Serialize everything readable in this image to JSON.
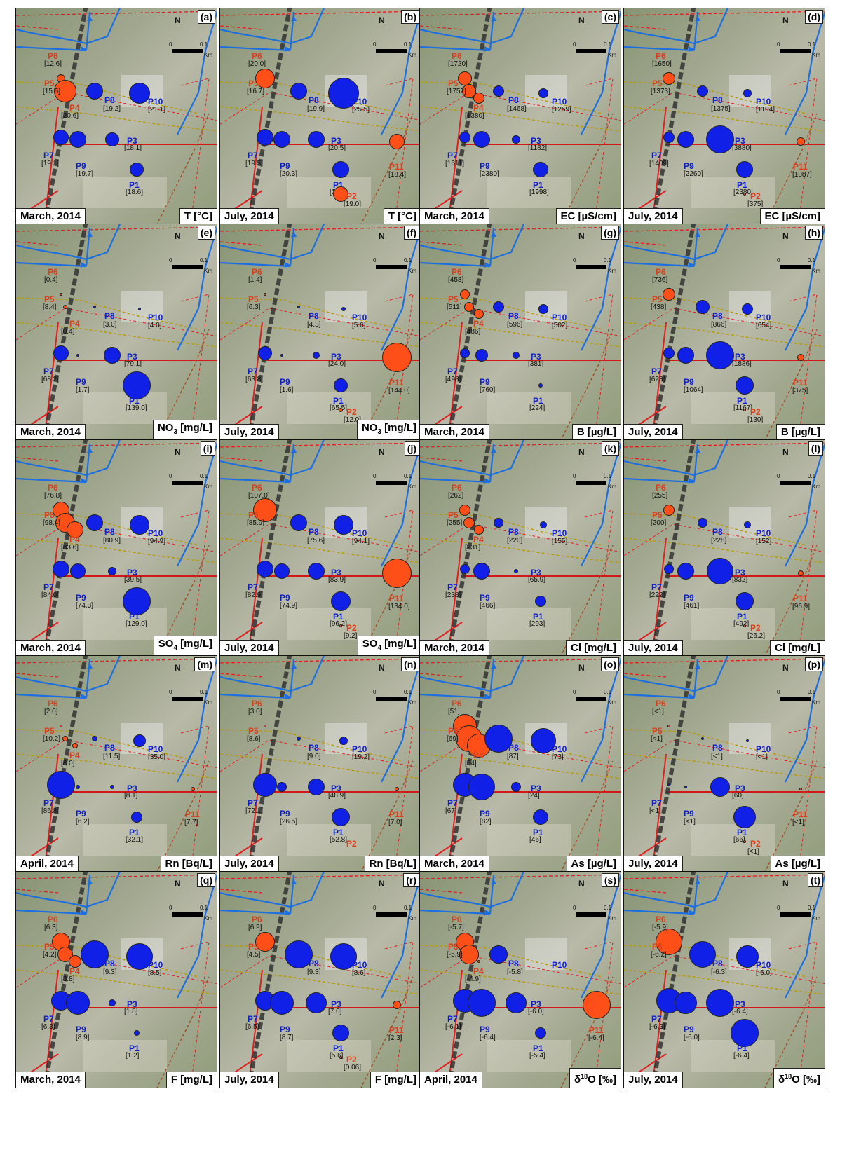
{
  "colors": {
    "low_group": "#1020e6",
    "high_group": "#ff4f18"
  },
  "scale": {
    "zero": "0",
    "tick": "0.1",
    "unit": "Km",
    "north": "N"
  },
  "panels": [
    {
      "tag": "(a)",
      "date": "March, 2014",
      "param": "T [°C]",
      "wells": {
        "P6": {
          "v": "[12.6]",
          "r": 6
        },
        "P5": {
          "v": "[15.5]",
          "r": 16
        },
        "P4": {
          "v": "[20.6]",
          "r": 0
        },
        "P8": {
          "v": "[19.2]",
          "r": 12
        },
        "P10": {
          "v": "[21.1]",
          "r": 15
        },
        "P7": {
          "v": "[19.1]",
          "r": 11
        },
        "P9": {
          "v": "[19.7]",
          "r": 12
        },
        "P3": {
          "v": "[18.1]",
          "r": 10
        },
        "P1": {
          "v": "[18.6]",
          "r": 10
        }
      }
    },
    {
      "tag": "(b)",
      "date": "July, 2014",
      "param": "T [°C]",
      "wells": {
        "P6": {
          "v": "[20.0]",
          "r": 14
        },
        "P5": {
          "v": "[16.7]",
          "r": 0
        },
        "P8": {
          "v": "[19.9]",
          "r": 12
        },
        "P10": {
          "v": "[25.5]",
          "r": 22
        },
        "P7": {
          "v": "[19.5]",
          "r": 12
        },
        "P9": {
          "v": "[20.3]",
          "r": 12
        },
        "P3": {
          "v": "[20.5]",
          "r": 12
        },
        "P11": {
          "v": "[18.4]",
          "r": 11
        },
        "P1": {
          "v": "[19.7]",
          "r": 12
        },
        "P2": {
          "v": "[19.0]",
          "r": 11
        }
      }
    },
    {
      "tag": "(c)",
      "date": "March, 2014",
      "param": "EC [µS/cm]",
      "wells": {
        "P6": {
          "v": "[1720]",
          "r": 10
        },
        "P5": {
          "v": "[1752]",
          "r": 10
        },
        "P4": {
          "v": "[1380]",
          "r": 8
        },
        "P8": {
          "v": "[1468]",
          "r": 8
        },
        "P10": {
          "v": "[1259]",
          "r": 7
        },
        "P7": {
          "v": "[1611]",
          "r": 8
        },
        "P9": {
          "v": "[2380]",
          "r": 12
        },
        "P3": {
          "v": "[1182]",
          "r": 6
        },
        "P1": {
          "v": "[1998]",
          "r": 11
        }
      }
    },
    {
      "tag": "(d)",
      "date": "July, 2014",
      "param": "EC [µS/cm]",
      "wells": {
        "P6": {
          "v": "[1650]",
          "r": 9
        },
        "P5": {
          "v": "[1373]",
          "r": 0
        },
        "P8": {
          "v": "[1375]",
          "r": 8
        },
        "P10": {
          "v": "[1104]",
          "r": 6
        },
        "P7": {
          "v": "[1409]",
          "r": 8
        },
        "P9": {
          "v": "[2260]",
          "r": 12
        },
        "P3": {
          "v": "[3880]",
          "r": 20
        },
        "P11": {
          "v": "[1087]",
          "r": 6
        },
        "P1": {
          "v": "[2380]",
          "r": 12
        },
        "P2": {
          "v": "[375]",
          "r": 2
        }
      }
    },
    {
      "tag": "(e)",
      "date": "March, 2014",
      "param": "NO3 [mg/L]",
      "wells": {
        "P6": {
          "v": "[0.4]",
          "r": 2
        },
        "P5": {
          "v": "[8.4]",
          "r": 3
        },
        "P4": {
          "v": "[0.4]",
          "r": 0
        },
        "P8": {
          "v": "[3.0]",
          "r": 2
        },
        "P10": {
          "v": "[4.0]",
          "r": 2
        },
        "P7": {
          "v": "[68.2]",
          "r": 11
        },
        "P9": {
          "v": "[1.7]",
          "r": 2
        },
        "P3": {
          "v": "[79.1]",
          "r": 12
        },
        "P1": {
          "v": "[139.0]",
          "r": 20
        }
      }
    },
    {
      "tag": "(f)",
      "date": "July, 2014",
      "param": "NO3 [mg/L]",
      "wells": {
        "P6": {
          "v": "[1.4]",
          "r": 2
        },
        "P5": {
          "v": "[6.3]",
          "r": 0
        },
        "P8": {
          "v": "[4.3]",
          "r": 2
        },
        "P10": {
          "v": "[5.6]",
          "r": 3
        },
        "P7": {
          "v": "[63.8]",
          "r": 10
        },
        "P9": {
          "v": "[1.6]",
          "r": 2
        },
        "P3": {
          "v": "[24.0]",
          "r": 5
        },
        "P11": {
          "v": "[144.0]",
          "r": 21
        },
        "P1": {
          "v": "[65.5]",
          "r": 10
        },
        "P2": {
          "v": "[12.0]",
          "r": 3
        }
      }
    },
    {
      "tag": "(g)",
      "date": "March, 2014",
      "param": "B [µg/L]",
      "wells": {
        "P6": {
          "v": "[458]",
          "r": 7
        },
        "P5": {
          "v": "[511]",
          "r": 7
        },
        "P4": {
          "v": "[486]",
          "r": 7
        },
        "P8": {
          "v": "[596]",
          "r": 8
        },
        "P10": {
          "v": "[502]",
          "r": 7
        },
        "P7": {
          "v": "[498]",
          "r": 7
        },
        "P9": {
          "v": "[760]",
          "r": 9
        },
        "P3": {
          "v": "[381]",
          "r": 5
        },
        "P1": {
          "v": "[224]",
          "r": 3
        }
      }
    },
    {
      "tag": "(h)",
      "date": "July, 2014",
      "param": "B [µg/L]",
      "wells": {
        "P6": {
          "v": "[736]",
          "r": 9
        },
        "P5": {
          "v": "[438]",
          "r": 0
        },
        "P8": {
          "v": "[866]",
          "r": 10
        },
        "P10": {
          "v": "[654]",
          "r": 8
        },
        "P7": {
          "v": "[623]",
          "r": 8
        },
        "P9": {
          "v": "[1064]",
          "r": 12
        },
        "P3": {
          "v": "[1886]",
          "r": 20
        },
        "P11": {
          "v": "[375]",
          "r": 5
        },
        "P1": {
          "v": "[1167]",
          "r": 13
        },
        "P2": {
          "v": "[130]",
          "r": 2
        }
      }
    },
    {
      "tag": "(i)",
      "date": "March, 2014",
      "param": "SO4 [mg/L]",
      "wells": {
        "P6": {
          "v": "[76.8]",
          "r": 12
        },
        "P5": {
          "v": "[98.4]",
          "r": 14
        },
        "P4": {
          "v": "[83.6]",
          "r": 12
        },
        "P8": {
          "v": "[80.9]",
          "r": 12
        },
        "P10": {
          "v": "[94.9]",
          "r": 14
        },
        "P7": {
          "v": "[84.0]",
          "r": 12
        },
        "P9": {
          "v": "[74.3]",
          "r": 11
        },
        "P3": {
          "v": "[39.5]",
          "r": 6
        },
        "P1": {
          "v": "[129.0]",
          "r": 20
        }
      }
    },
    {
      "tag": "(j)",
      "date": "July, 2014",
      "param": "SO4 [mg/L]",
      "wells": {
        "P6": {
          "v": "[107.0]",
          "r": 17
        },
        "P5": {
          "v": "[85.9]",
          "r": 0
        },
        "P8": {
          "v": "[75.6]",
          "r": 12
        },
        "P10": {
          "v": "[94.1]",
          "r": 14
        },
        "P7": {
          "v": "[82.9]",
          "r": 12
        },
        "P9": {
          "v": "[74.9]",
          "r": 11
        },
        "P3": {
          "v": "[83.9]",
          "r": 12
        },
        "P11": {
          "v": "[134.0]",
          "r": 21
        },
        "P1": {
          "v": "[96.2]",
          "r": 14
        },
        "P2": {
          "v": "[9.2]",
          "r": 2
        }
      }
    },
    {
      "tag": "(k)",
      "date": "March, 2014",
      "param": "Cl [mg/L]",
      "wells": {
        "P6": {
          "v": "[262]",
          "r": 8
        },
        "P5": {
          "v": "[255]",
          "r": 8
        },
        "P4": {
          "v": "[231]",
          "r": 7
        },
        "P8": {
          "v": "[220]",
          "r": 7
        },
        "P10": {
          "v": "[155]",
          "r": 5
        },
        "P7": {
          "v": "[238]",
          "r": 7
        },
        "P9": {
          "v": "[466]",
          "r": 12
        },
        "P3": {
          "v": "[65.9]",
          "r": 3
        },
        "P1": {
          "v": "[293]",
          "r": 8
        }
      }
    },
    {
      "tag": "(l)",
      "date": "July, 2014",
      "param": "Cl [mg/L]",
      "wells": {
        "P6": {
          "v": "[255]",
          "r": 8
        },
        "P5": {
          "v": "[200]",
          "r": 0
        },
        "P8": {
          "v": "[228]",
          "r": 7
        },
        "P10": {
          "v": "[152]",
          "r": 5
        },
        "P7": {
          "v": "[222]",
          "r": 7
        },
        "P9": {
          "v": "[461]",
          "r": 12
        },
        "P3": {
          "v": "[832]",
          "r": 19
        },
        "P11": {
          "v": "[96.9]",
          "r": 4
        },
        "P1": {
          "v": "[492]",
          "r": 13
        },
        "P2": {
          "v": "[26.2]",
          "r": 2
        }
      }
    },
    {
      "tag": "(m)",
      "date": "April, 2014",
      "param": "Rn [Bq/L]",
      "wells": {
        "P6": {
          "v": "[2.0]",
          "r": 2
        },
        "P5": {
          "v": "[10.2]",
          "r": 4
        },
        "P4": {
          "v": "[8.0]",
          "r": 4
        },
        "P8": {
          "v": "[11.5]",
          "r": 4
        },
        "P10": {
          "v": "[35.0]",
          "r": 9
        },
        "P7": {
          "v": "[86.8]",
          "r": 20
        },
        "P9": {
          "v": "[6.2]",
          "r": 3
        },
        "P3": {
          "v": "[8.1]",
          "r": 3
        },
        "P11": {
          "v": "[7.7]",
          "r": 3
        },
        "P1": {
          "v": "[32.1]",
          "r": 8
        }
      }
    },
    {
      "tag": "(n)",
      "date": "July, 2014",
      "param": "Rn [Bq/L]",
      "wells": {
        "P6": {
          "v": "[3.0]",
          "r": 2
        },
        "P5": {
          "v": "[8.6]",
          "r": 0
        },
        "P8": {
          "v": "[9.0]",
          "r": 3
        },
        "P10": {
          "v": "[19.2]",
          "r": 6
        },
        "P7": {
          "v": "[72.1]",
          "r": 17
        },
        "P9": {
          "v": "[26.5]",
          "r": 7
        },
        "P3": {
          "v": "[48.9]",
          "r": 12
        },
        "P11": {
          "v": "[7.0]",
          "r": 3
        },
        "P1": {
          "v": "[52.8]",
          "r": 13
        },
        "P2": {
          "v": "",
          " r": 0
        }
      }
    },
    {
      "tag": "(o)",
      "date": "March, 2014",
      "param": "As [µg/L]",
      "wells": {
        "P6": {
          "v": "[51]",
          "r": 17
        },
        "P5": {
          "v": "[69]",
          "r": 19
        },
        "P4": {
          "v": "[54]",
          "r": 17
        },
        "P8": {
          "v": "[87]",
          "r": 20
        },
        "P10": {
          "v": "[73]",
          "r": 18
        },
        "P7": {
          "v": "[67]",
          "r": 17
        },
        "P9": {
          "v": "[82]",
          "r": 19
        },
        "P3": {
          "v": "[24]",
          "r": 7
        },
        "P1": {
          "v": "[46]",
          "r": 11
        }
      }
    },
    {
      "tag": "(p)",
      "date": "July, 2014",
      "param": "As [µg/L]",
      "wells": {
        "P6": {
          "v": "[<1]",
          "r": 2
        },
        "P5": {
          "v": "[<1]",
          "r": 0
        },
        "P8": {
          "v": "[<1]",
          "r": 2
        },
        "P10": {
          "v": "[<1]",
          "r": 2
        },
        "P7": {
          "v": "[<1]",
          "r": 2
        },
        "P9": {
          "v": "[<1]",
          "r": 2
        },
        "P3": {
          "v": "[60]",
          "r": 14
        },
        "P11": {
          "v": "[<1]",
          "r": 2
        },
        "P1": {
          "v": "[66]",
          "r": 16
        },
        "P2": {
          "v": "[<1]",
          "r": 2
        }
      }
    },
    {
      "tag": "(q)",
      "date": "March, 2014",
      "param": "F [mg/L]",
      "wells": {
        "P6": {
          "v": "[6.3]",
          "r": 13
        },
        "P5": {
          "v": "[4.2]",
          "r": 11
        },
        "P4": {
          "v": "[3.8]",
          "r": 9
        },
        "P8": {
          "v": "[9.3]",
          "r": 20
        },
        "P10": {
          "v": "[8.5]",
          "r": 19
        },
        "P7": {
          "v": "[6.3]",
          "r": 14
        },
        "P9": {
          "v": "[8.9]",
          "r": 17
        },
        "P3": {
          "v": "[1.8]",
          "r": 5
        },
        "P1": {
          "v": "[1.2]",
          "r": 4
        }
      }
    },
    {
      "tag": "(r)",
      "date": "July, 2014",
      "param": "F [mg/L]",
      "wells": {
        "P6": {
          "v": "[6.9]",
          "r": 14
        },
        "P5": {
          "v": "[4.5]",
          "r": 0
        },
        "P8": {
          "v": "[9.3]",
          "r": 20
        },
        "P10": {
          "v": "[8.6]",
          "r": 19
        },
        "P7": {
          "v": "[6.5]",
          "r": 14
        },
        "P9": {
          "v": "[8.7]",
          "r": 17
        },
        "P3": {
          "v": "[7.0]",
          "r": 15
        },
        "P11": {
          "v": "[2.3]",
          "r": 6
        },
        "P1": {
          "v": "[5.6]",
          "r": 12
        },
        "P2": {
          "v": "[0.06]",
          "r": 2
        }
      }
    },
    {
      "tag": "(s)",
      "date": "April, 2014",
      "param": "δ18O [‰]",
      "wells": {
        "P6": {
          "v": "[-5.7]",
          "r": 13
        },
        "P5": {
          "v": "[-5.9]",
          "r": 14
        },
        "P4": {
          "v": "[-4.9]",
          "r": 2
        },
        "P8": {
          "v": "[-5.8]",
          "r": 13
        },
        "P10": {
          "v": "",
          "r": 0
        },
        "P7": {
          "v": "[-6.1]",
          "r": 17
        },
        "P9": {
          "v": "[-6.4]",
          "r": 20
        },
        "P3": {
          "v": "[-6.0]",
          "r": 15
        },
        "P11": {
          "v": "[-6.4]",
          "r": 20
        },
        "P1": {
          "v": "[-5.4]",
          "r": 8
        }
      }
    },
    {
      "tag": "(t)",
      "date": "July, 2014",
      "param": "δ18O [‰]",
      "wells": {
        "P6": {
          "v": "[-5.9]",
          "r": 19
        },
        "P5": {
          "v": "[-6.2]",
          "r": 0
        },
        "P8": {
          "v": "[-6.3]",
          "r": 19
        },
        "P10": {
          "v": "[-6.0]",
          "r": 16
        },
        "P7": {
          "v": "[-6.3]",
          "r": 18
        },
        "P9": {
          "v": "[-6.0]",
          "r": 16
        },
        "P3": {
          "v": "[-6.4]",
          "r": 20
        },
        "P1": {
          "v": "[-6.4]",
          "r": 20
        }
      }
    }
  ]
}
